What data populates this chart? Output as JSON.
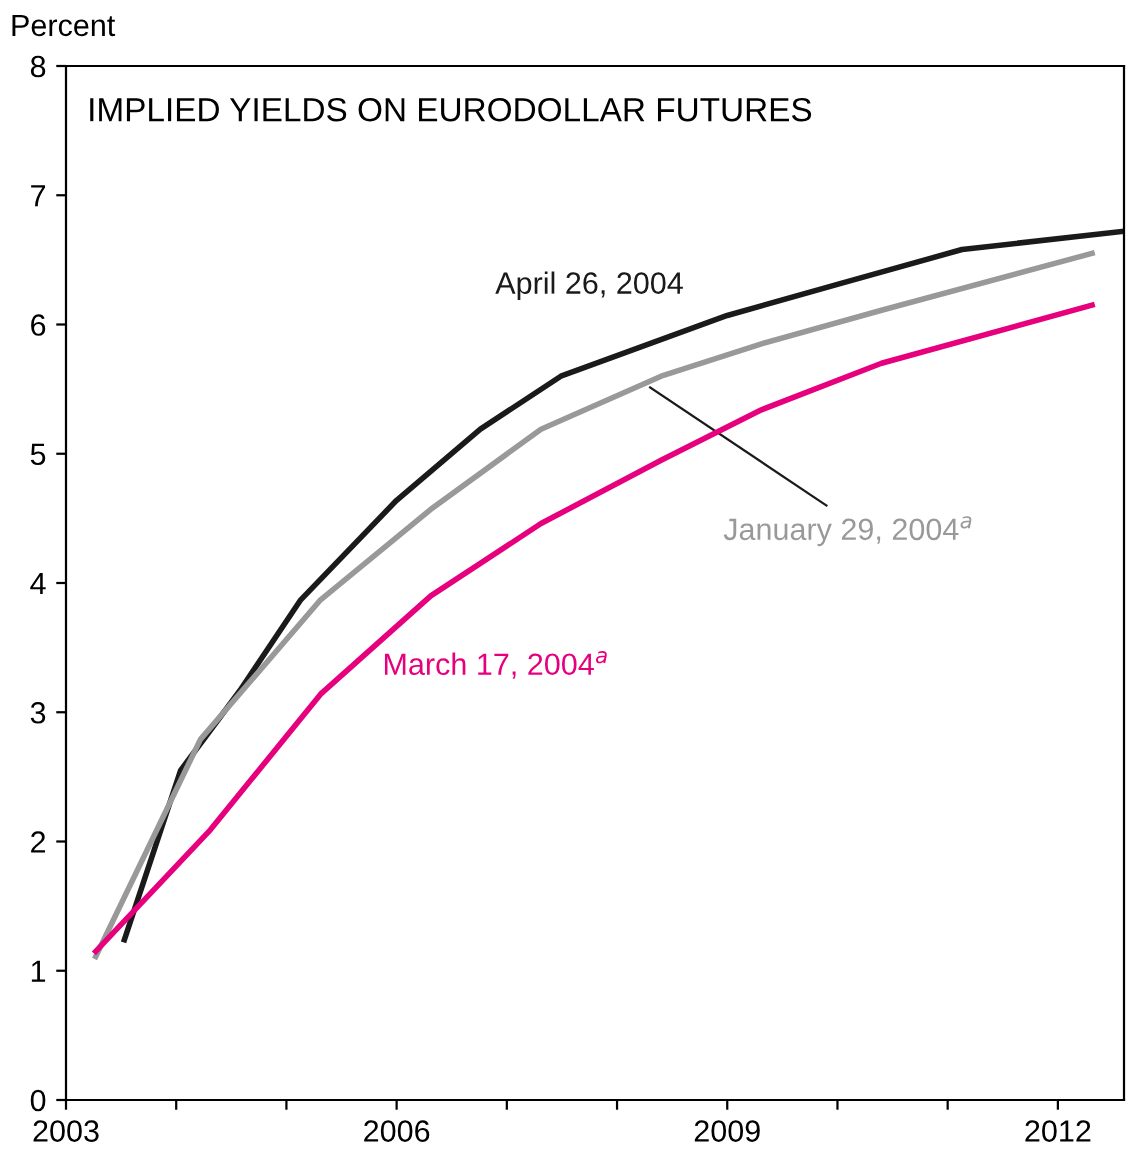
{
  "chart_data": {
    "type": "line",
    "title": "IMPLIED YIELDS ON EURODOLLAR FUTURES",
    "ylabel": "Percent",
    "xlim": [
      2003,
      2012.6
    ],
    "ylim": [
      0,
      8
    ],
    "xticks": [
      2003,
      {
        "value": 2004,
        "label": null
      },
      {
        "value": 2005,
        "label": null
      },
      2006,
      {
        "value": 2007,
        "label": null
      },
      {
        "value": 2008,
        "label": null
      },
      2009,
      {
        "value": 2010,
        "label": null
      },
      {
        "value": 2011,
        "label": null
      },
      2012
    ],
    "yticks": [
      0,
      1,
      2,
      3,
      4,
      5,
      6,
      7,
      8
    ],
    "grid": false,
    "legend": false,
    "marker": "none",
    "line_style": "solid",
    "series": [
      {
        "name": "April 26, 2004",
        "color": "#1a1a1a",
        "x": [
          2003.53,
          2004.04,
          2004.58,
          2005.13,
          2006.0,
          2006.76,
          2007.49,
          2009.0,
          2010.04,
          2011.13,
          2012.58
        ],
        "values": [
          1.24,
          2.55,
          3.17,
          3.87,
          4.64,
          5.19,
          5.6,
          6.07,
          6.32,
          6.58,
          6.72
        ]
      },
      {
        "name": "January 29, 2004$^{a}$",
        "color": "#999999",
        "x": [
          2003.27,
          2004.22,
          2005.31,
          2006.31,
          2007.31,
          2008.4,
          2009.31,
          2010.4,
          2012.31
        ],
        "values": [
          1.11,
          2.79,
          3.87,
          4.57,
          5.19,
          5.6,
          5.85,
          6.11,
          6.55
        ]
      },
      {
        "name": "March 17, 2004$^{a}$",
        "color": "#e6007e",
        "x": [
          2003.27,
          2004.31,
          2005.31,
          2006.31,
          2007.31,
          2008.4,
          2009.31,
          2010.4,
          2012.31
        ],
        "values": [
          1.15,
          2.09,
          3.14,
          3.9,
          4.46,
          4.95,
          5.34,
          5.7,
          6.15
        ]
      }
    ]
  }
}
